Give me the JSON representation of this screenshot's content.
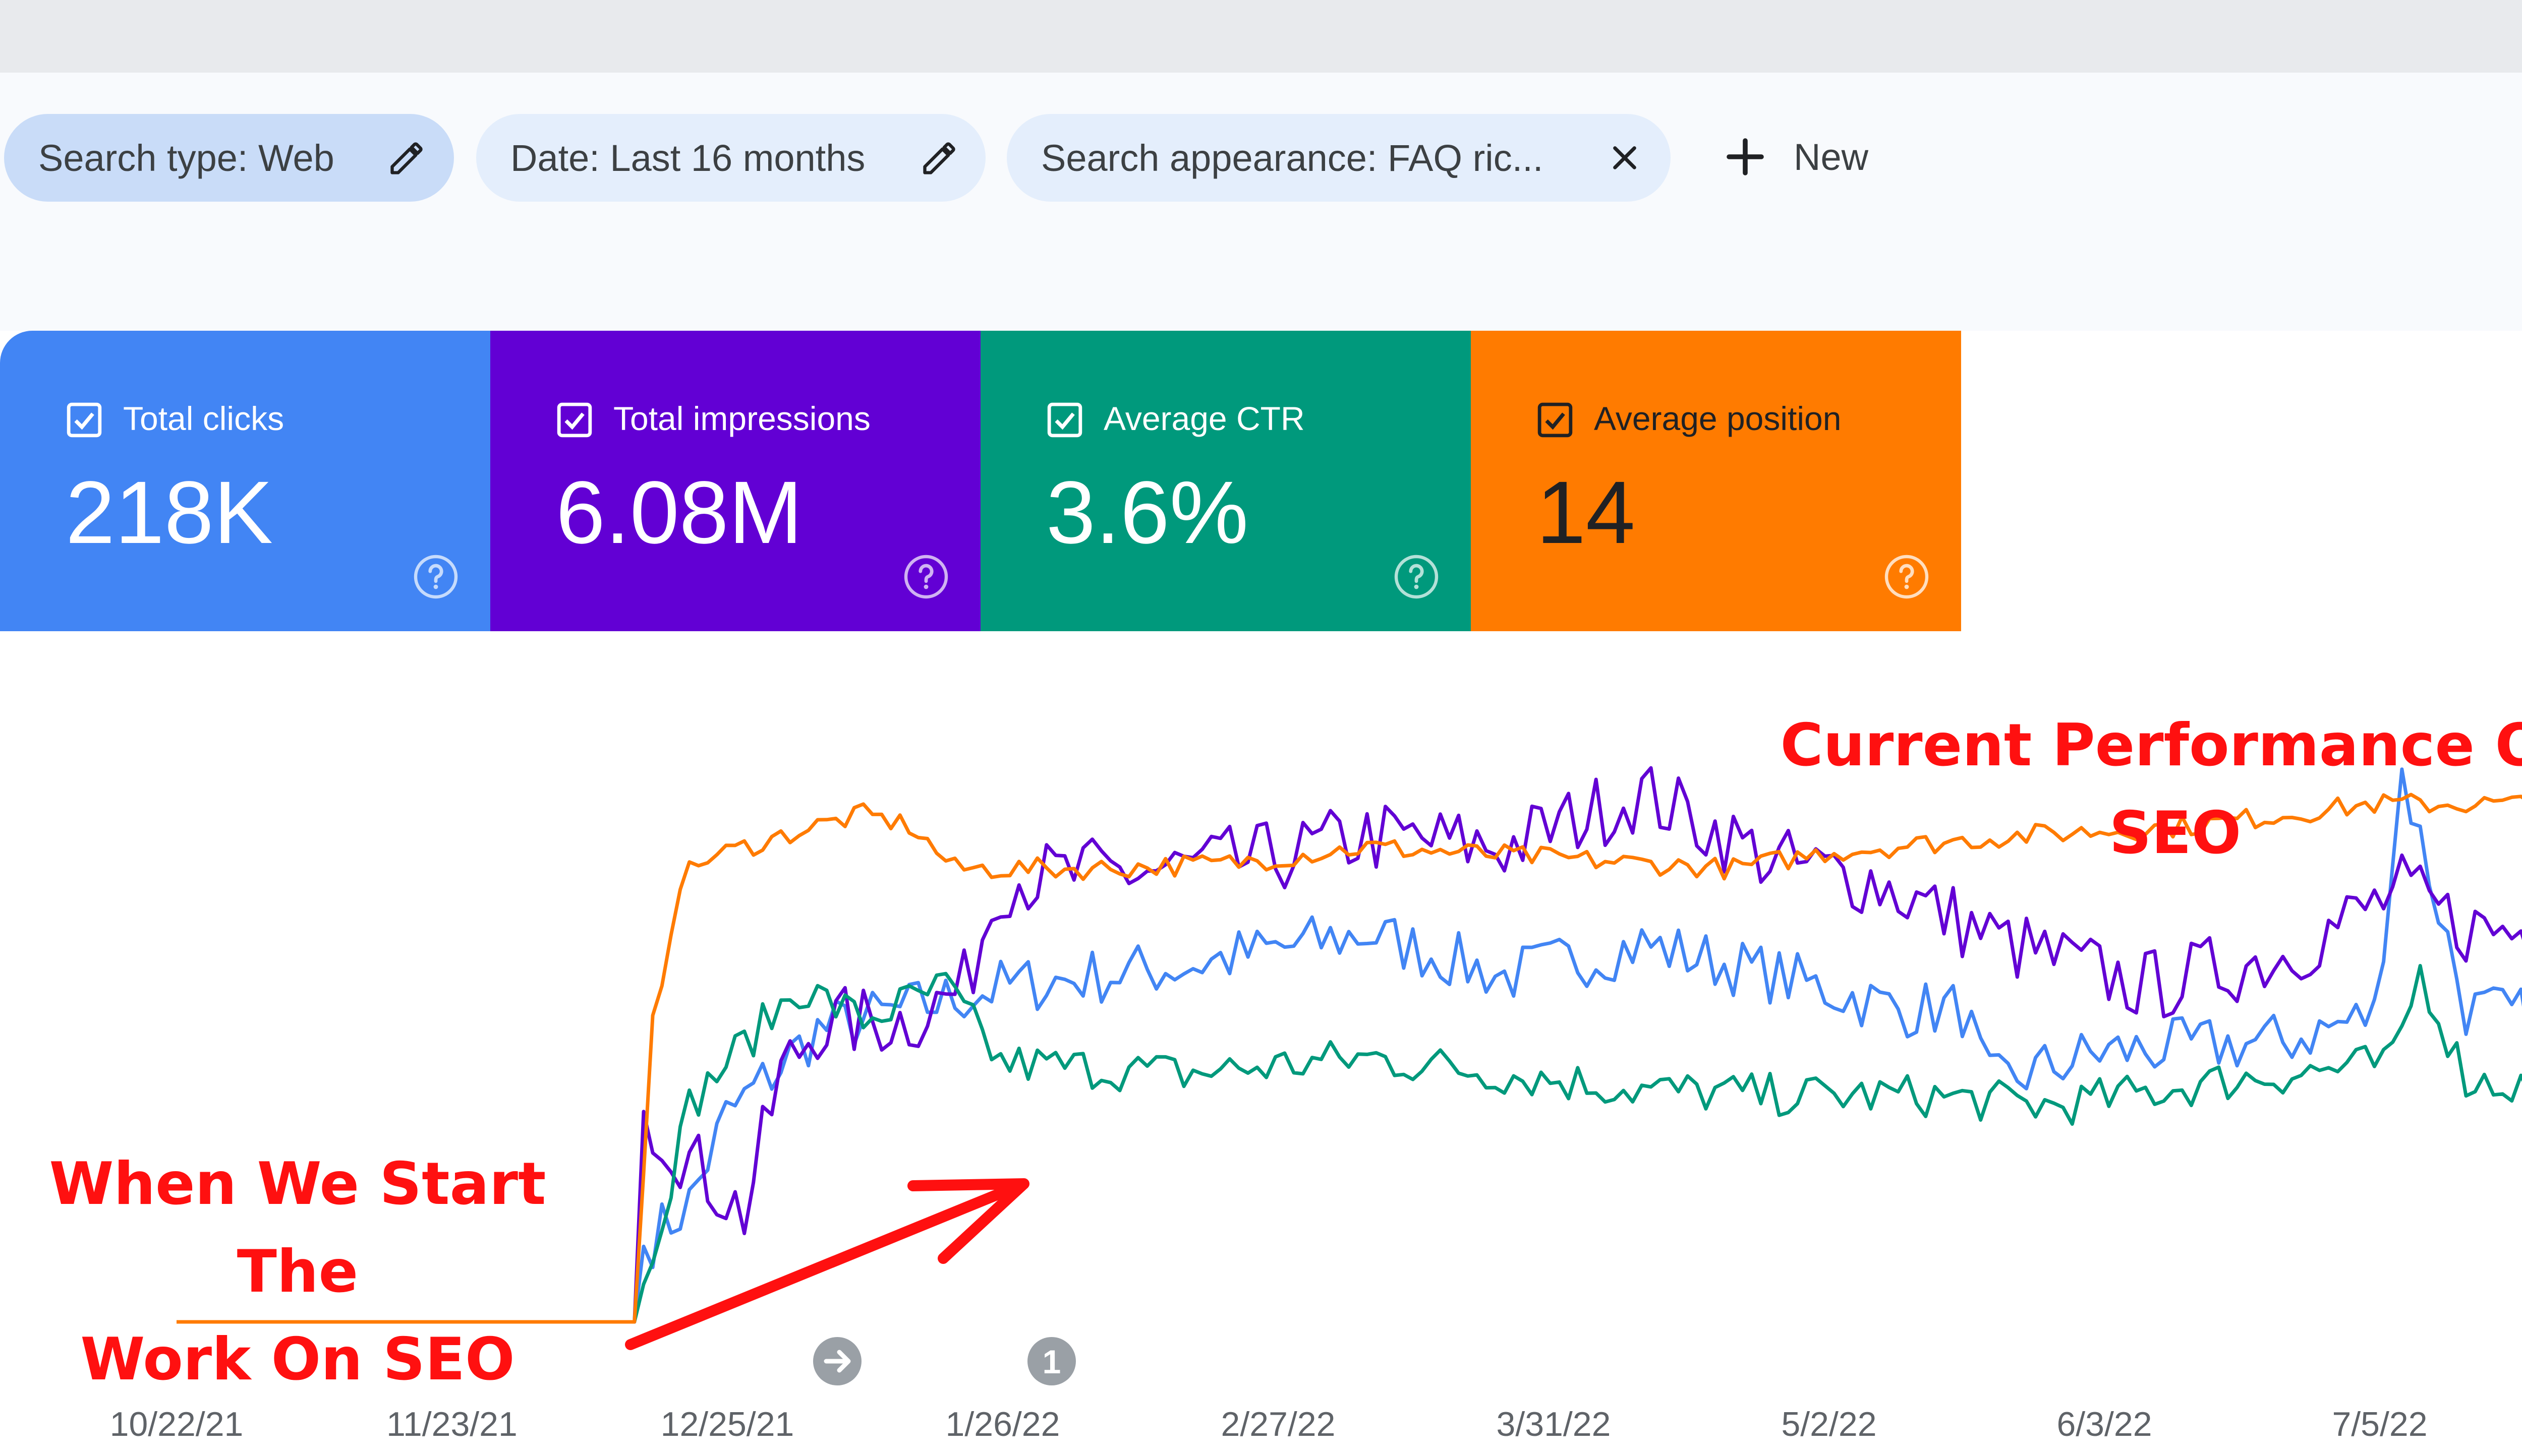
{
  "filters": {
    "chips": [
      {
        "label": "Search type: Web",
        "icon": "pencil-icon"
      },
      {
        "label": "Date: Last 16 months",
        "icon": "pencil-icon"
      },
      {
        "label": "Search appearance: FAQ ric...",
        "icon": "close-icon"
      }
    ],
    "new_label": "New",
    "new_icon": "plus-icon"
  },
  "metrics": [
    {
      "label": "Total clicks",
      "value": "218K",
      "color": "#4285f4",
      "text_color": "#ffffff"
    },
    {
      "label": "Total impressions",
      "value": "6.08M",
      "color": "#6200d4",
      "text_color": "#ffffff"
    },
    {
      "label": "Average CTR",
      "value": "3.6%",
      "color": "#00997c",
      "text_color": "#ffffff"
    },
    {
      "label": "Average position",
      "value": "14",
      "color": "#ff7b00",
      "text_color": "#202124"
    }
  ],
  "annotations": {
    "current": "Current Performance Of SEO",
    "start_line1": "When We Start The",
    "start_line2": "Work On SEO",
    "color": "#ff1010"
  },
  "chart_data": {
    "type": "line",
    "x_tick_labels": [
      "10/22/21",
      "11/23/21",
      "12/25/21",
      "1/26/22",
      "2/27/22",
      "3/31/22",
      "5/2/22",
      "6/3/22",
      "7/5/22"
    ],
    "markers": [
      {
        "label": "",
        "icon": "arrow-right-icon",
        "date": "12/11/21"
      },
      {
        "label": "1",
        "date": "1/5/22"
      }
    ],
    "y_axis": "hidden, each series normalized to its own scale",
    "series": [
      {
        "name": "Total clicks",
        "color": "#4285f4",
        "keypoints": [
          [
            0,
            0
          ],
          [
            50,
            0
          ],
          [
            51,
            14
          ],
          [
            56,
            22
          ],
          [
            60,
            38
          ],
          [
            70,
            54
          ],
          [
            80,
            58
          ],
          [
            90,
            62
          ],
          [
            110,
            66
          ],
          [
            130,
            72
          ],
          [
            145,
            64
          ],
          [
            160,
            70
          ],
          [
            175,
            64
          ],
          [
            188,
            58
          ],
          [
            195,
            58
          ],
          [
            198,
            44
          ],
          [
            210,
            50
          ],
          [
            230,
            52
          ],
          [
            240,
            57
          ],
          [
            243,
            102
          ],
          [
            250,
            58
          ],
          [
            263,
            55
          ]
        ]
      },
      {
        "name": "Total impressions",
        "color": "#6200d4",
        "keypoints": [
          [
            0,
            0
          ],
          [
            50,
            0
          ],
          [
            51,
            39
          ],
          [
            56,
            30
          ],
          [
            62,
            20
          ],
          [
            66,
            46
          ],
          [
            70,
            55
          ],
          [
            80,
            56
          ],
          [
            86,
            62
          ],
          [
            90,
            82
          ],
          [
            110,
            84
          ],
          [
            120,
            86
          ],
          [
            130,
            90
          ],
          [
            145,
            88
          ],
          [
            160,
            98
          ],
          [
            175,
            85
          ],
          [
            185,
            82
          ],
          [
            200,
            70
          ],
          [
            215,
            62
          ],
          [
            230,
            68
          ],
          [
            243,
            80
          ],
          [
            250,
            73
          ],
          [
            263,
            72
          ]
        ]
      },
      {
        "name": "Average CTR",
        "color": "#00997c",
        "keypoints": [
          [
            0,
            0
          ],
          [
            50,
            0
          ],
          [
            52,
            14
          ],
          [
            56,
            40
          ],
          [
            60,
            48
          ],
          [
            68,
            62
          ],
          [
            75,
            56
          ],
          [
            84,
            62
          ],
          [
            90,
            48
          ],
          [
            110,
            46
          ],
          [
            130,
            49
          ],
          [
            145,
            46
          ],
          [
            160,
            43
          ],
          [
            175,
            42
          ],
          [
            190,
            42
          ],
          [
            205,
            40
          ],
          [
            225,
            45
          ],
          [
            242,
            48
          ],
          [
            245,
            65
          ],
          [
            250,
            45
          ],
          [
            263,
            42
          ]
        ]
      },
      {
        "name": "Average position",
        "color": "#ff7b00",
        "keypoints": [
          [
            0,
            0
          ],
          [
            50,
            0
          ],
          [
            52,
            55
          ],
          [
            55,
            82
          ],
          [
            58,
            86
          ],
          [
            62,
            88
          ],
          [
            70,
            92
          ],
          [
            75,
            94
          ],
          [
            80,
            92
          ],
          [
            85,
            84
          ],
          [
            100,
            84
          ],
          [
            115,
            85
          ],
          [
            130,
            88
          ],
          [
            150,
            86
          ],
          [
            170,
            84
          ],
          [
            180,
            87
          ],
          [
            200,
            90
          ],
          [
            220,
            92
          ],
          [
            240,
            96
          ],
          [
            263,
            96
          ]
        ]
      }
    ]
  }
}
